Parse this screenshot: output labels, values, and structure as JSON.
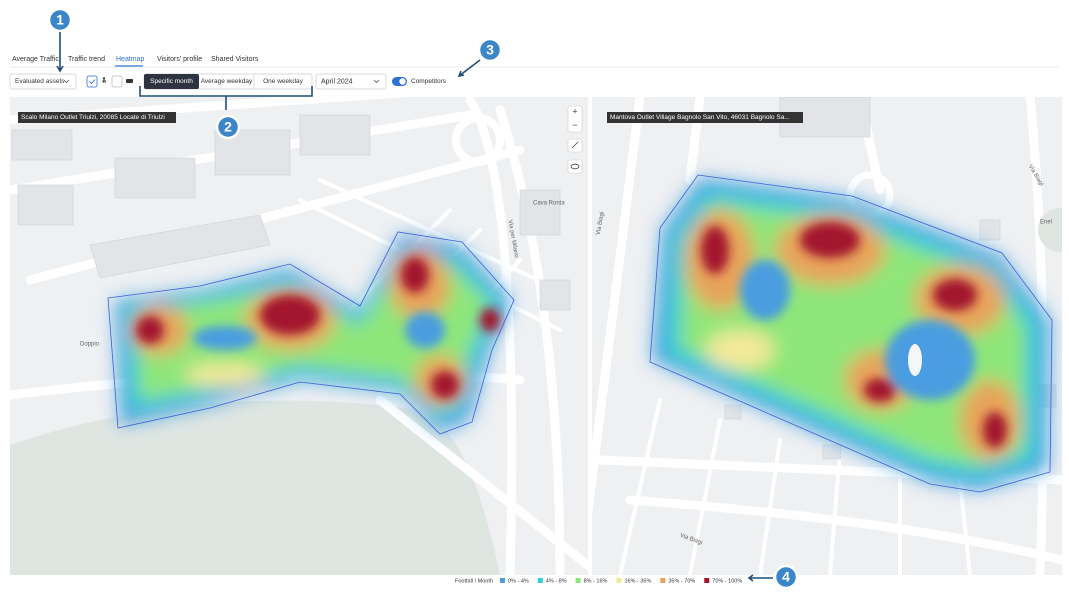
{
  "tabs": [
    "Average Traffic",
    "Traffic trend",
    "Heatmap",
    "Visitors' profile",
    "Shared Visitors"
  ],
  "toolbar": {
    "assets_dropdown": "Evaluated assets",
    "mode_buttons": [
      "Specific month",
      "Average weekday",
      "One weekday"
    ],
    "month": "April 2024",
    "competitors_toggle": "Competitors"
  },
  "maps": [
    {
      "label": "Scalo Milano Outlet Triulzi, 20085 Locate di Triulzi",
      "street_labels": [
        "Doppio",
        "Via per Milano",
        "Cava Ronta"
      ]
    },
    {
      "label": "Mantova Outlet Village Bagnolo San Vito, 46031 Bagnolo Sa...",
      "street_labels": [
        "Via Biagi",
        "Via Biagi",
        "Enel",
        "Via Biagi"
      ]
    }
  ],
  "map_controls": [
    "+",
    "−"
  ],
  "legend": {
    "title": "Footfall / Month",
    "items": [
      {
        "label": "0% - 4%",
        "color": "#4a9de0"
      },
      {
        "label": "4% - 8%",
        "color": "#2fd0d8"
      },
      {
        "label": "8% - 16%",
        "color": "#8ee67a"
      },
      {
        "label": "16% - 35%",
        "color": "#f4e99a"
      },
      {
        "label": "35% - 70%",
        "color": "#e8a35a"
      },
      {
        "label": "70% - 100%",
        "color": "#a3152e"
      }
    ]
  },
  "callouts": [
    "1",
    "2",
    "3",
    "4"
  ]
}
